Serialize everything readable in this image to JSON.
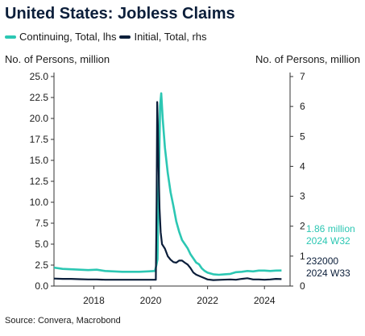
{
  "title": "United States: Jobless Claims",
  "source": "Source: Convera, Macrobond",
  "colors": {
    "continuing": "#2cc7b3",
    "initial": "#0b1e3a",
    "axis": "#333333",
    "text": "#1a1a1a"
  },
  "chart_data": {
    "type": "line",
    "title": "United States: Jobless Claims",
    "x_ticks": [
      2018,
      2020,
      2022,
      2024
    ],
    "x_range": [
      2016.6,
      2024.9
    ],
    "left_axis": {
      "label": "No. of Persons, million",
      "range": [
        0,
        25
      ],
      "ticks": [
        "0.0",
        "2.5",
        "5.0",
        "7.5",
        "10.0",
        "12.5",
        "15.0",
        "17.5",
        "20.0",
        "22.5",
        "25.0"
      ]
    },
    "right_axis": {
      "label": "No. of Persons, million",
      "range": [
        0,
        7
      ],
      "ticks": [
        "0",
        "1",
        "2",
        "3",
        "4",
        "5",
        "6",
        "7"
      ]
    },
    "series": [
      {
        "name": "Continuing, Total, lhs",
        "axis": "left",
        "color": "#2cc7b3",
        "x": [
          2016.6,
          2016.9,
          2017.2,
          2017.5,
          2017.8,
          2018.1,
          2018.4,
          2018.7,
          2019.0,
          2019.3,
          2019.6,
          2019.9,
          2020.15,
          2020.2,
          2020.24,
          2020.27,
          2020.3,
          2020.33,
          2020.37,
          2020.42,
          2020.5,
          2020.6,
          2020.7,
          2020.8,
          2020.9,
          2021.0,
          2021.1,
          2021.2,
          2021.3,
          2021.4,
          2021.5,
          2021.6,
          2021.7,
          2021.8,
          2021.9,
          2022.0,
          2022.2,
          2022.4,
          2022.6,
          2022.8,
          2023.0,
          2023.2,
          2023.4,
          2023.6,
          2023.8,
          2024.0,
          2024.2,
          2024.4,
          2024.6
        ],
        "y": [
          2.2,
          2.05,
          2.0,
          1.95,
          1.9,
          1.95,
          1.8,
          1.75,
          1.7,
          1.7,
          1.7,
          1.75,
          1.8,
          2.5,
          3.2,
          10.0,
          15.0,
          21.5,
          23.0,
          20.0,
          16.5,
          13.5,
          11.2,
          9.5,
          7.7,
          6.5,
          5.5,
          5.0,
          4.5,
          3.8,
          3.3,
          2.8,
          2.6,
          2.1,
          1.8,
          1.6,
          1.4,
          1.35,
          1.4,
          1.45,
          1.65,
          1.7,
          1.8,
          1.75,
          1.85,
          1.85,
          1.8,
          1.85,
          1.86
        ]
      },
      {
        "name": "Initial, Total, rhs",
        "axis": "right",
        "color": "#0b1e3a",
        "x": [
          2016.6,
          2016.9,
          2017.2,
          2017.5,
          2017.8,
          2018.1,
          2018.4,
          2018.7,
          2019.0,
          2019.3,
          2019.6,
          2019.9,
          2020.18,
          2020.21,
          2020.23,
          2020.25,
          2020.28,
          2020.31,
          2020.35,
          2020.4,
          2020.5,
          2020.6,
          2020.7,
          2020.8,
          2020.9,
          2021.0,
          2021.1,
          2021.2,
          2021.3,
          2021.4,
          2021.5,
          2021.6,
          2021.8,
          2022.0,
          2022.2,
          2022.5,
          2022.8,
          2023.0,
          2023.2,
          2023.4,
          2023.6,
          2023.8,
          2024.0,
          2024.2,
          2024.4,
          2024.6
        ],
        "y": [
          0.25,
          0.24,
          0.24,
          0.23,
          0.22,
          0.22,
          0.21,
          0.21,
          0.21,
          0.21,
          0.21,
          0.21,
          0.21,
          2.9,
          6.15,
          5.5,
          3.9,
          2.6,
          1.8,
          1.4,
          1.25,
          1.0,
          0.88,
          0.8,
          0.78,
          0.85,
          0.85,
          0.78,
          0.72,
          0.6,
          0.45,
          0.38,
          0.3,
          0.22,
          0.2,
          0.21,
          0.22,
          0.21,
          0.24,
          0.26,
          0.22,
          0.22,
          0.21,
          0.22,
          0.24,
          0.232
        ]
      }
    ],
    "annotations": [
      {
        "series": "Continuing, Total, lhs",
        "lines": [
          "1.86 million",
          "2024 W32"
        ]
      },
      {
        "series": "Initial, Total, rhs",
        "lines": [
          "232000",
          "2024 W33"
        ]
      }
    ]
  }
}
